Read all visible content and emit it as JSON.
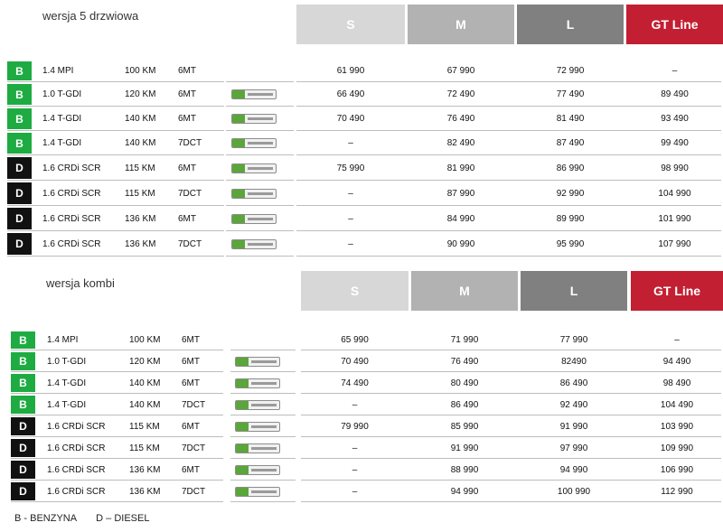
{
  "colors": {
    "S": "#d7d7d7",
    "M": "#b2b2b2",
    "L": "#808080",
    "GT": "#c31f32",
    "petrol": "#1eab42",
    "diesel": "#111111"
  },
  "sections": [
    {
      "title": "wersja 5 drzwiowa",
      "trims": [
        "S",
        "M",
        "L",
        "GT Line"
      ],
      "rows": [
        {
          "fuel": "B",
          "engine": "1.4 MPI",
          "power": "100 KM",
          "gearbox": "6MT",
          "eco": false,
          "prices": [
            "61 990",
            "67 990",
            "72 990",
            "–"
          ]
        },
        {
          "fuel": "B",
          "engine": "1.0 T-GDI",
          "power": "120 KM",
          "gearbox": "6MT",
          "eco": true,
          "prices": [
            "66 490",
            "72 490",
            "77 490",
            "89 490"
          ]
        },
        {
          "fuel": "B",
          "engine": "1.4 T-GDI",
          "power": "140 KM",
          "gearbox": "6MT",
          "eco": true,
          "prices": [
            "70 490",
            "76 490",
            "81 490",
            "93 490"
          ]
        },
        {
          "fuel": "B",
          "engine": "1.4 T-GDI",
          "power": "140 KM",
          "gearbox": "7DCT",
          "eco": true,
          "prices": [
            "–",
            "82 490",
            "87 490",
            "99 490"
          ]
        },
        {
          "fuel": "D",
          "engine": "1.6 CRDi SCR",
          "power": "115 KM",
          "gearbox": "6MT",
          "eco": true,
          "prices": [
            "75 990",
            "81 990",
            "86 990",
            "98 990"
          ]
        },
        {
          "fuel": "D",
          "engine": "1.6 CRDi SCR",
          "power": "115 KM",
          "gearbox": "7DCT",
          "eco": true,
          "prices": [
            "–",
            "87 990",
            "92 990",
            "104 990"
          ]
        },
        {
          "fuel": "D",
          "engine": "1.6 CRDi SCR",
          "power": "136 KM",
          "gearbox": "6MT",
          "eco": true,
          "prices": [
            "–",
            "84 990",
            "89 990",
            "101 990"
          ]
        },
        {
          "fuel": "D",
          "engine": "1.6 CRDi SCR",
          "power": "136 KM",
          "gearbox": "7DCT",
          "eco": true,
          "prices": [
            "–",
            "90 990",
            "95 990",
            "107 990"
          ]
        }
      ]
    },
    {
      "title": "wersja  kombi",
      "trims": [
        "S",
        "M",
        "L",
        "GT Line"
      ],
      "rows": [
        {
          "fuel": "B",
          "engine": "1.4 MPI",
          "power": "100 KM",
          "gearbox": "6MT",
          "eco": false,
          "prices": [
            "65 990",
            "71 990",
            "77 990",
            "–"
          ]
        },
        {
          "fuel": "B",
          "engine": "1.0 T-GDI",
          "power": "120 KM",
          "gearbox": "6MT",
          "eco": true,
          "prices": [
            "70 490",
            "76 490",
            "82490",
            "94 490"
          ]
        },
        {
          "fuel": "B",
          "engine": "1.4 T-GDI",
          "power": "140 KM",
          "gearbox": "6MT",
          "eco": true,
          "prices": [
            "74 490",
            "80 490",
            "86 490",
            "98 490"
          ]
        },
        {
          "fuel": "B",
          "engine": "1.4 T-GDI",
          "power": "140 KM",
          "gearbox": "7DCT",
          "eco": true,
          "prices": [
            "–",
            "86 490",
            "92 490",
            "104 490"
          ]
        },
        {
          "fuel": "D",
          "engine": "1.6 CRDi SCR",
          "power": "115 KM",
          "gearbox": "6MT",
          "eco": true,
          "prices": [
            "79 990",
            "85 990",
            "91 990",
            "103 990"
          ]
        },
        {
          "fuel": "D",
          "engine": "1.6 CRDi SCR",
          "power": "115 KM",
          "gearbox": "7DCT",
          "eco": true,
          "prices": [
            "–",
            "91 990",
            "97 990",
            "109 990"
          ]
        },
        {
          "fuel": "D",
          "engine": "1.6 CRDi SCR",
          "power": "136 KM",
          "gearbox": "6MT",
          "eco": true,
          "prices": [
            "–",
            "88 990",
            "94 990",
            "106 990"
          ]
        },
        {
          "fuel": "D",
          "engine": "1.6 CRDi SCR",
          "power": "136 KM",
          "gearbox": "7DCT",
          "eco": true,
          "prices": [
            "–",
            "94 990",
            "100 990",
            "112 990"
          ]
        }
      ]
    }
  ],
  "legend": {
    "petrol": "B  - BENZYNA",
    "diesel": "D – DIESEL"
  }
}
